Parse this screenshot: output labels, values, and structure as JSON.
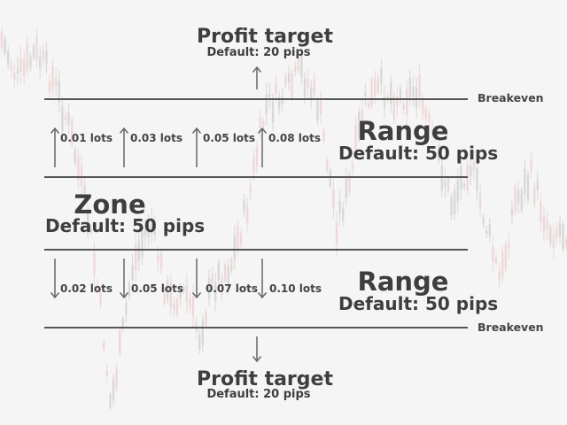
{
  "labels": {
    "profit_target": "Profit target",
    "profit_default": "Default: 20 pips",
    "breakeven": "Breakeven",
    "range": "Range",
    "range_default": "Default: 50 pips",
    "zone": "Zone",
    "zone_default": "Default: 50 pips"
  },
  "buy_orders": [
    "0.01 lots",
    "0.03 lots",
    "0.05 lots",
    "0.08 lots"
  ],
  "sell_orders": [
    "0.02 lots",
    "0.05 lots",
    "0.07 lots",
    "0.10 lots"
  ],
  "colors": {
    "background": "#f5f5f5",
    "line": "#555555",
    "text": "#3e3e3e",
    "candle_up": "#d8d8d8",
    "candle_down": "#eed8d8"
  }
}
